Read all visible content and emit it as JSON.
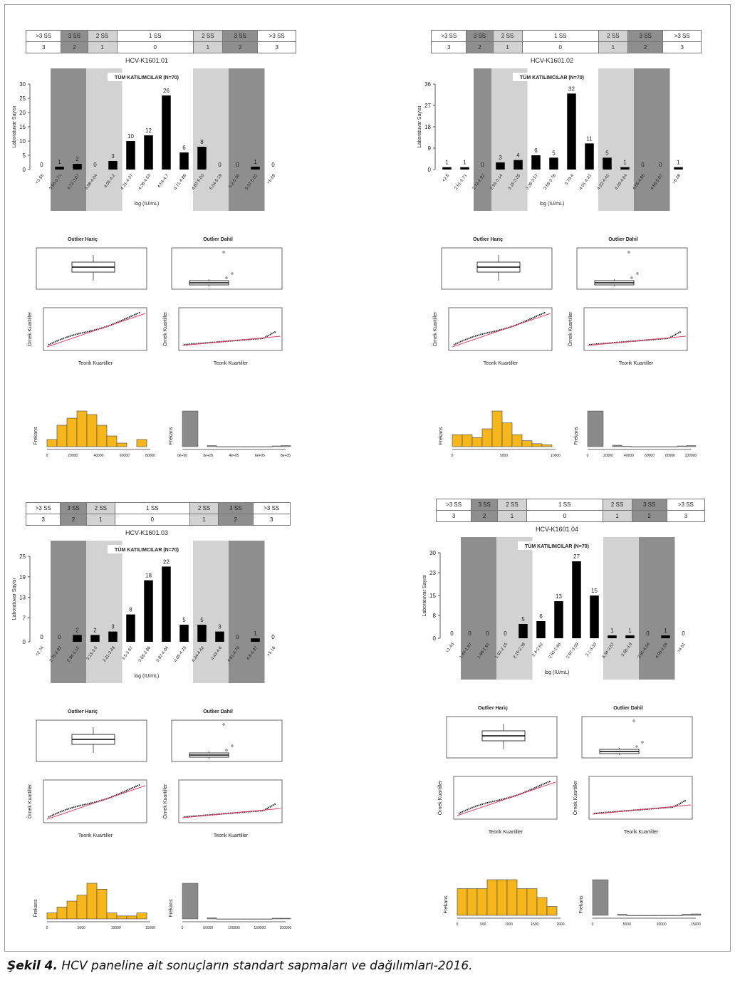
{
  "caption": {
    "label": "Şekil 4.",
    "text": "HCV paneline ait sonuçların standart sapmaları ve dağılımları-2016."
  },
  "sd_header": [
    ">3 SS",
    "3 SS",
    "2 SS",
    "1 SS",
    "2 SS",
    "3 SS",
    ">3 SS"
  ],
  "sd_scores": [
    "3",
    "2",
    "1",
    "0",
    "1",
    "2",
    "3"
  ],
  "shade_colors": {
    "dark": "#8e8e8e",
    "light": "#d2d2d2",
    "bar": "#000000",
    "hist_fill": "#f5b71c",
    "hist_gray": "#8a8a8a",
    "qq_line": "#e23d6c"
  },
  "common": {
    "main_title": "TÜM KATILIMCILAR (N=70)",
    "ylabel": "Laboratuvar Sayısı",
    "xlabel": "log (IU/mL)",
    "outlier_excluded": "Outlier Hariç",
    "outlier_included": "Outlier Dahil",
    "qq_ylabel": "Örnek Kuartiller",
    "qq_xlabel": "Teorik Kuartiller",
    "hist_ylabel": "Frekans"
  },
  "chart_data": [
    {
      "type": "bar",
      "panel_id": "HCV-K1601.01",
      "categories": [
        "<3.55",
        "3.56-3.71",
        "3.72-3.87",
        "3.88-4.04",
        "4.05-4.2",
        "4.21-4.37",
        "4.38-4.53",
        "4.54-4.7",
        "4.71-4.86",
        "4.87-5.03",
        "5.04-5.19",
        "5.2-5.36",
        "5.37-5.52",
        ">5.69"
      ],
      "values": [
        0,
        1,
        2,
        0,
        3,
        10,
        12,
        26,
        6,
        8,
        0,
        0,
        1,
        0
      ],
      "yticks": [
        0,
        5,
        10,
        15,
        20,
        25,
        30
      ],
      "ylim": [
        0,
        30
      ],
      "shading": [
        "",
        "dark",
        "dark",
        "light",
        "light",
        "",
        "",
        "",
        "",
        "light",
        "light",
        "dark",
        "dark",
        ""
      ],
      "hist_left": [
        2,
        6,
        8,
        10,
        9,
        6,
        3,
        1,
        0,
        2
      ],
      "hist_left_ticks": [
        "0",
        "20000",
        "40000",
        "60000",
        "80000"
      ],
      "hist_right": [
        10,
        0.3,
        0,
        0,
        0,
        0,
        0,
        0,
        0.2,
        0.3
      ],
      "hist_right_ticks": [
        "0e+00",
        "2e+05",
        "4e+05",
        "6e+05",
        "8e+05"
      ]
    },
    {
      "type": "bar",
      "panel_id": "HCV-K1601.02",
      "categories": [
        "<2.5",
        "2.51-2.71",
        "2.72-2.92",
        "2.93-3.14",
        "3.15-3.35",
        "3.36-3.57",
        "3.58-3.78",
        "3.79-4",
        "4.01-4.21",
        "4.22-4.42",
        "4.43-4.64",
        "4.65-4.85",
        "4.86-5.07",
        ">5.28"
      ],
      "values": [
        1,
        1,
        0,
        3,
        4,
        6,
        5,
        32,
        11,
        5,
        1,
        0,
        0,
        1
      ],
      "yticks": [
        0,
        9,
        18,
        27,
        36
      ],
      "ylim": [
        0,
        36
      ],
      "shading": [
        "",
        "",
        "dark",
        "light",
        "light",
        "",
        "",
        "",
        "",
        "light",
        "light",
        "dark",
        "dark",
        ""
      ],
      "hist_left": [
        2,
        2,
        1.5,
        3,
        6,
        4,
        2,
        1,
        0.5,
        0.3
      ],
      "hist_left_ticks": [
        "0",
        "5000",
        "10000"
      ],
      "hist_right": [
        10,
        0.4,
        0.1,
        0,
        0,
        0,
        0,
        0,
        0.2,
        0.3
      ],
      "hist_right_ticks": [
        "0",
        "20000",
        "40000",
        "60000",
        "80000",
        "100000"
      ]
    },
    {
      "type": "bar",
      "panel_id": "HCV-K1601.03",
      "categories": [
        "<2.74",
        "2.75-2.93",
        "2.94-3.12",
        "3.13-3.3",
        "3.31-3.49",
        "3.5-3.67",
        "3.68-3.86",
        "3.87-4.04",
        "4.05-4.23",
        "4.24-4.42",
        "4.43-4.6",
        "4.61-4.79",
        "4.8-4.97",
        ">5.16"
      ],
      "values": [
        0,
        0,
        2,
        2,
        3,
        8,
        18,
        22,
        5,
        5,
        3,
        0,
        1,
        0
      ],
      "yticks": [
        0,
        7,
        13,
        19,
        25
      ],
      "ylim": [
        0,
        25
      ],
      "shading": [
        "",
        "dark",
        "dark",
        "light",
        "light",
        "",
        "",
        "",
        "",
        "light",
        "light",
        "dark",
        "dark",
        ""
      ],
      "hist_left": [
        1,
        2,
        3,
        4,
        6,
        5,
        1,
        0.5,
        0.5,
        1
      ],
      "hist_left_ticks": [
        "0",
        "5000",
        "10000",
        "15000"
      ],
      "hist_right": [
        10,
        0.3,
        0,
        0,
        0,
        0,
        0,
        0,
        0.2,
        0.2
      ],
      "hist_right_ticks": [
        "0",
        "50000",
        "100000",
        "150000",
        "200000"
      ]
    },
    {
      "type": "bar",
      "panel_id": "HCV-K1601.04",
      "categories": [
        "<1.43",
        "1.44-1.67",
        "1.68-1.91",
        "1.92-2.15",
        "2.16-2.39",
        "2.4-2.62",
        "2.63-2.86",
        "2.87-3.09",
        "3.1-3.33",
        "3.34-3.57",
        "3.58-3.8",
        "3.81-4.04",
        "4.05-4.28",
        ">4.51"
      ],
      "values": [
        0,
        0,
        0,
        0,
        5,
        6,
        13,
        27,
        15,
        1,
        1,
        0,
        1,
        0
      ],
      "yticks": [
        0,
        8,
        15,
        23,
        30
      ],
      "ylim": [
        0,
        30
      ],
      "shading": [
        "",
        "dark",
        "dark",
        "light",
        "light",
        "",
        "",
        "",
        "",
        "light",
        "light",
        "dark",
        "dark",
        ""
      ],
      "hist_left": [
        3,
        3,
        3,
        4,
        4,
        4,
        3,
        3,
        2,
        1
      ],
      "hist_left_ticks": [
        "0",
        "500",
        "1000",
        "1500",
        "2000"
      ],
      "hist_right": [
        10,
        0.3,
        0,
        0,
        0,
        0,
        0,
        0,
        0.3,
        0.4
      ],
      "hist_right_ticks": [
        "0",
        "5000",
        "10000",
        "15000"
      ]
    }
  ]
}
